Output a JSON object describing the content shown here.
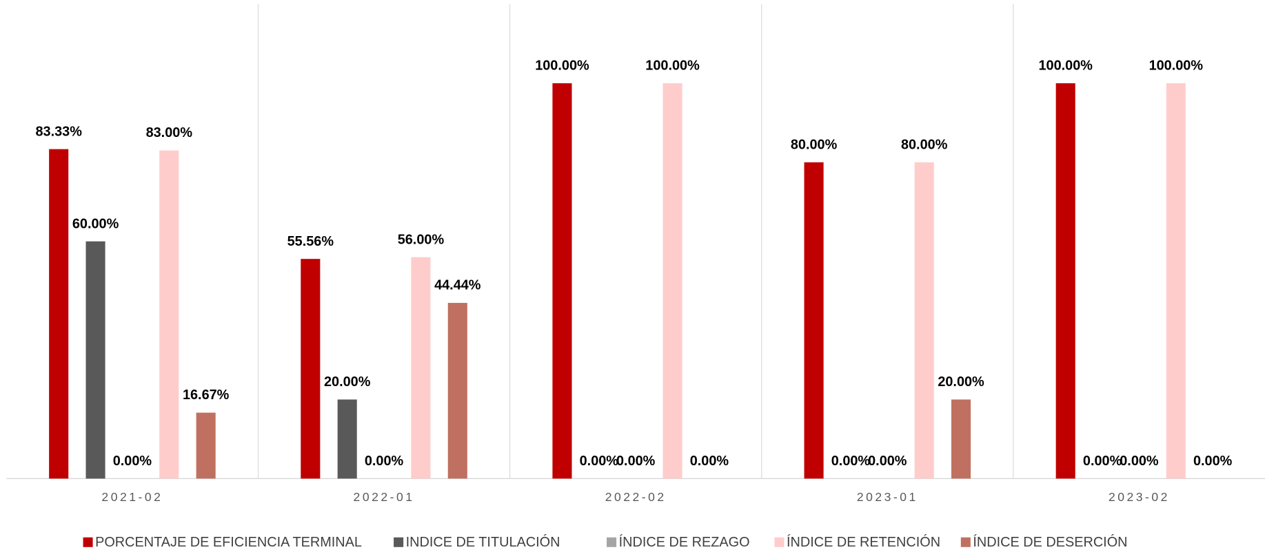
{
  "chart_data": {
    "type": "bar",
    "categories": [
      "2021-02",
      "2022-01",
      "2022-02",
      "2023-01",
      "2023-02"
    ],
    "ylim": [
      0,
      120
    ],
    "legend": "bottom",
    "series": [
      {
        "name": "PORCENTAJE DE EFICIENCIA TERMINAL",
        "color": "#c00000",
        "values": [
          83.33,
          55.56,
          100,
          80,
          100
        ],
        "value_labels": [
          "83.33%",
          "55.56%",
          "100.00%",
          "80.00%",
          "100.00%"
        ]
      },
      {
        "name": "INDICE DE TITULACIÓN",
        "color": "#595959",
        "values": [
          60,
          20,
          0,
          0,
          0
        ],
        "value_labels": [
          "60.00%",
          "20.00%",
          "0.00%",
          "0.00%",
          "0.00%"
        ]
      },
      {
        "name": "ÍNDICE DE REZAGO",
        "color": "#a5a5a5",
        "values": [
          0,
          0,
          0,
          0,
          0
        ],
        "value_labels": [
          "0.00%",
          "0.00%",
          "0.00%",
          "0.00%",
          "0.00%"
        ]
      },
      {
        "name": "ÍNDICE DE RETENCIÓN",
        "color": "#ffcccc",
        "values": [
          83,
          56,
          100,
          80,
          100
        ],
        "value_labels": [
          "83.00%",
          "56.00%",
          "100.00%",
          "80.00%",
          "100.00%"
        ]
      },
      {
        "name": "ÍNDICE DE DESERCIÓN",
        "color": "#c07060",
        "values": [
          16.67,
          44.44,
          0,
          20,
          0
        ],
        "value_labels": [
          "16.67%",
          "44.44%",
          "0.00%",
          "20.00%",
          "0.00%"
        ]
      }
    ]
  }
}
